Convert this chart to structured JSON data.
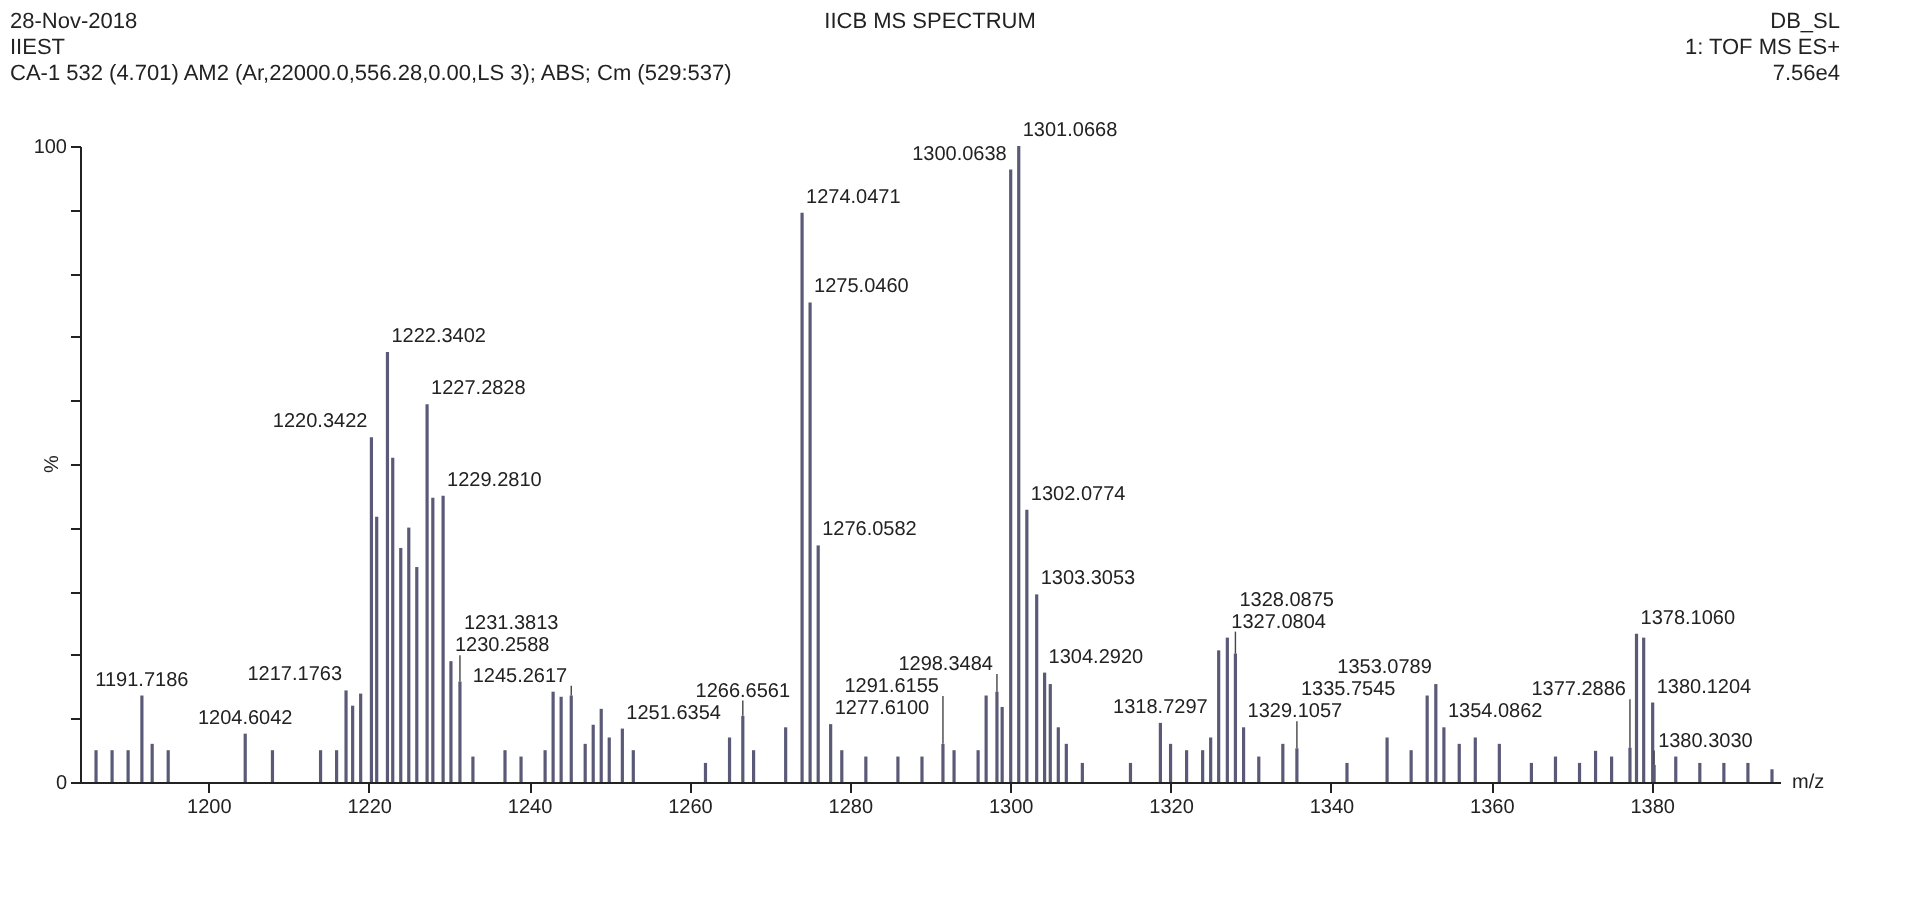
{
  "chart_data": {
    "type": "bar",
    "title": "IICB MS SPECTRUM",
    "xlabel": "m/z",
    "ylabel": "%",
    "xlim": [
      1184,
      1396
    ],
    "ylim": [
      0,
      100
    ],
    "xticks": [
      1200,
      1220,
      1240,
      1260,
      1280,
      1300,
      1320,
      1340,
      1360,
      1380
    ],
    "yticks": [
      0,
      {
        "value": 10,
        "label": null
      },
      {
        "value": 20,
        "label": null
      },
      {
        "value": 30,
        "label": null
      },
      {
        "value": 40,
        "label": null
      },
      {
        "value": 50,
        "label": null
      },
      {
        "value": 60,
        "label": null
      },
      {
        "value": 70,
        "label": null
      },
      {
        "value": 80,
        "label": null
      },
      {
        "value": 90,
        "label": null
      },
      100
    ],
    "grid": false,
    "color": "#5a5a78",
    "x": [
      1186,
      1188,
      1190,
      1191.7186,
      1193,
      1195,
      1204.6042,
      1208,
      1214,
      1216,
      1217.1763,
      1218,
      1219,
      1220.3422,
      1221,
      1222.3402,
      1223,
      1224,
      1225,
      1226,
      1227.2828,
      1228,
      1229.281,
      1230.2588,
      1231.3813,
      1233,
      1237,
      1239,
      1242,
      1243,
      1244,
      1245.2617,
      1247,
      1248,
      1249,
      1250,
      1251.6354,
      1253,
      1262,
      1265,
      1266.6561,
      1268,
      1272,
      1274.0471,
      1275.046,
      1276.0582,
      1277.61,
      1279,
      1282,
      1286,
      1289,
      1291.6155,
      1293,
      1296,
      1297,
      1298.3484,
      1299,
      1300.0638,
      1301.0668,
      1302.0774,
      1303.3053,
      1304.292,
      1305,
      1306,
      1307,
      1309,
      1315,
      1318.7297,
      1320,
      1322,
      1324,
      1325,
      1326,
      1327.0804,
      1328.0875,
      1329.1057,
      1331,
      1334,
      1335.7545,
      1342,
      1347,
      1350,
      1352,
      1353.0789,
      1354.0862,
      1356,
      1358,
      1361,
      1365,
      1368,
      1371,
      1373,
      1375,
      1377.2886,
      1378.106,
      1379,
      1380.1204,
      1380.303,
      1383,
      1386,
      1389,
      1392,
      1395
    ],
    "values": [
      5,
      5,
      5,
      13.6,
      6,
      5,
      7.6,
      5,
      5,
      5,
      14.4,
      12,
      13.9,
      54.2,
      41.7,
      67.6,
      51,
      36.8,
      40,
      33.8,
      59.4,
      44.7,
      45,
      19,
      15.8,
      4,
      5,
      4,
      5,
      14.2,
      13.4,
      13.6,
      6,
      9,
      11.5,
      7,
      8.4,
      5,
      3,
      7,
      10.4,
      5,
      8.6,
      89.5,
      75.4,
      37.2,
      9.1,
      5,
      4,
      4,
      4,
      6,
      5,
      5,
      13.6,
      14.2,
      11.8,
      96.3,
      100,
      42.8,
      29.5,
      17.2,
      15.4,
      8.6,
      6,
      3,
      3,
      9.3,
      6,
      5,
      5,
      7,
      20.7,
      22.7,
      20.2,
      8.6,
      4,
      6,
      5.3,
      3,
      7,
      5,
      13.6,
      15.4,
      8.6,
      6,
      7,
      6,
      3,
      4,
      3,
      4.9,
      4,
      5.4,
      23.3,
      22.7,
      12.5,
      2.7,
      4,
      3,
      3,
      3,
      2
    ],
    "annotations": [
      "28-Nov-2018",
      "IIEST",
      "CA-1 532 (4.701) AM2 (Ar,22000.0,556.28,0.00,LS 3); ABS; Cm (529:537)",
      "DB_SL",
      "1: TOF MS ES+",
      "7.56e4",
      {
        "text": "1191.7186",
        "x": 1191.7186,
        "y": 13.6
      },
      {
        "text": "1204.6042",
        "x": 1204.6042,
        "y": 7.6
      },
      {
        "text": "1217.1763",
        "x": 1217.1763,
        "y": 14.4
      },
      {
        "text": "1220.3422",
        "x": 1220.3422,
        "y": 54.2
      },
      {
        "text": "1222.3402",
        "x": 1222.3402,
        "y": 67.6
      },
      {
        "text": "1227.2828",
        "x": 1227.2828,
        "y": 59.4
      },
      {
        "text": "1229.2810",
        "x": 1229.281,
        "y": 45
      },
      {
        "text": "1230.2588",
        "x": 1230.2588,
        "y": 19
      },
      {
        "text": "1231.3813",
        "x": 1231.3813,
        "y": 15.8
      },
      {
        "text": "1245.2617",
        "x": 1245.2617,
        "y": 13.6
      },
      {
        "text": "1251.6354",
        "x": 1251.6354,
        "y": 8.4
      },
      {
        "text": "1266.6561",
        "x": 1266.6561,
        "y": 10.4
      },
      {
        "text": "1274.0471",
        "x": 1274.0471,
        "y": 89.5
      },
      {
        "text": "1275.0460",
        "x": 1275.046,
        "y": 75.4
      },
      {
        "text": "1276.0582",
        "x": 1276.0582,
        "y": 37.2
      },
      {
        "text": "1277.6100",
        "x": 1277.61,
        "y": 9.1
      },
      {
        "text": "1291.6155",
        "x": 1291.6155,
        "y": 6
      },
      {
        "text": "1298.3484",
        "x": 1298.3484,
        "y": 14.2
      },
      {
        "text": "1300.0638",
        "x": 1300.0638,
        "y": 96.3
      },
      {
        "text": "1301.0668",
        "x": 1301.0668,
        "y": 100
      },
      {
        "text": "1302.0774",
        "x": 1302.0774,
        "y": 42.8
      },
      {
        "text": "1303.3053",
        "x": 1303.3053,
        "y": 29.5
      },
      {
        "text": "1304.2920",
        "x": 1304.292,
        "y": 17.2
      },
      {
        "text": "1318.7297",
        "x": 1318.7297,
        "y": 9.3
      },
      {
        "text": "1327.0804",
        "x": 1327.0804,
        "y": 22.7
      },
      {
        "text": "1328.0875",
        "x": 1328.0875,
        "y": 20.2
      },
      {
        "text": "1329.1057",
        "x": 1329.1057,
        "y": 8.6
      },
      {
        "text": "1335.7545",
        "x": 1335.7545,
        "y": 5.3
      },
      {
        "text": "1353.0789",
        "x": 1353.0789,
        "y": 15.4
      },
      {
        "text": "1354.0862",
        "x": 1354.0862,
        "y": 8.6
      },
      {
        "text": "1377.2886",
        "x": 1377.2886,
        "y": 5.4
      },
      {
        "text": "1378.1060",
        "x": 1378.106,
        "y": 23.3
      },
      {
        "text": "1380.1204",
        "x": 1380.1204,
        "y": 12.5
      },
      {
        "text": "1380.3030",
        "x": 1380.303,
        "y": 2.7
      }
    ]
  }
}
